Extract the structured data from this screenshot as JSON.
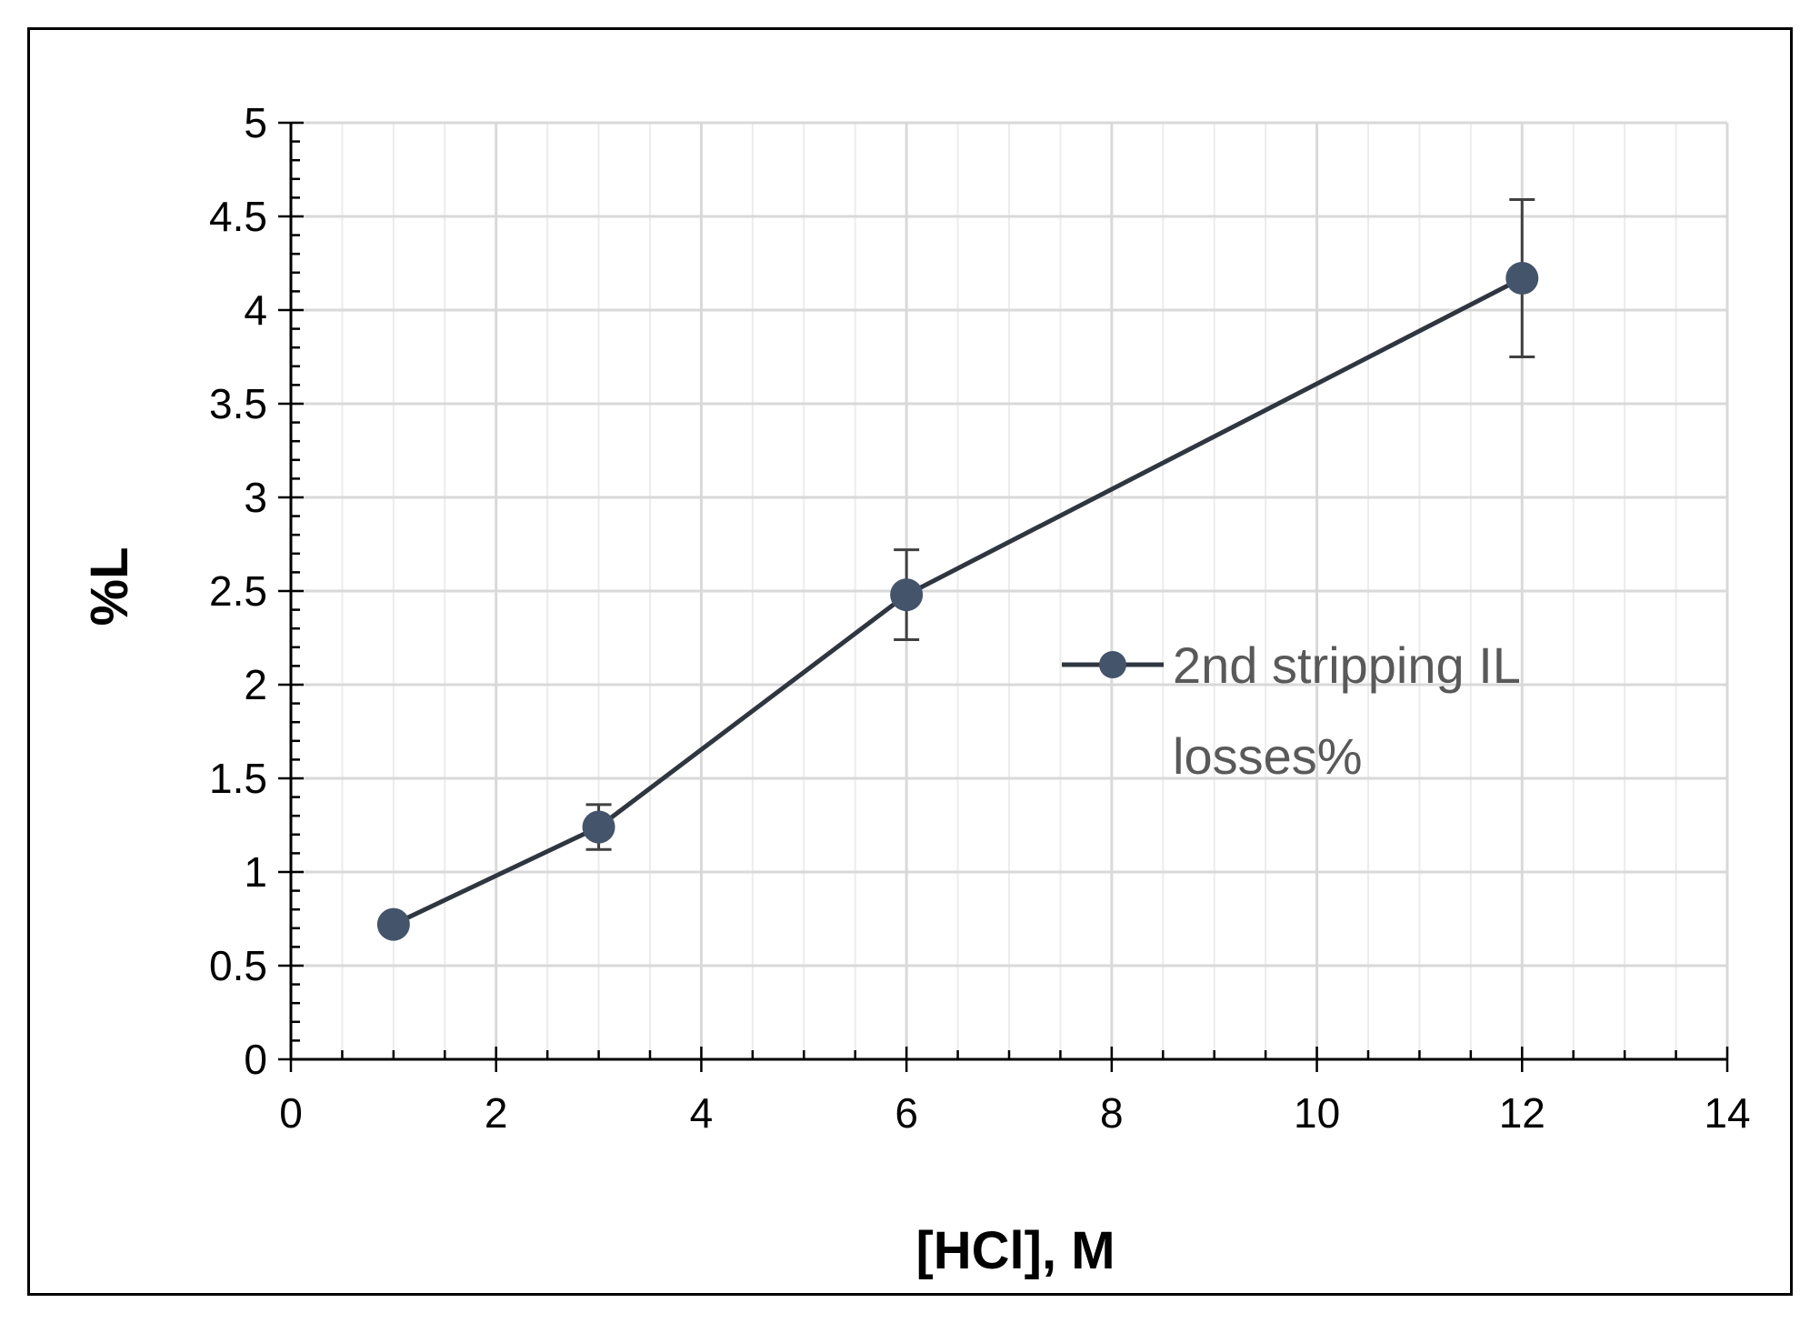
{
  "chart_data": {
    "type": "line",
    "title": "",
    "xlabel": "[HCl], M",
    "ylabel": "%L",
    "xlim": [
      0,
      14
    ],
    "ylim": [
      0,
      5
    ],
    "x_ticks": [
      "0",
      "2",
      "4",
      "6",
      "8",
      "10",
      "12",
      "14"
    ],
    "y_ticks": [
      "0",
      "0.5",
      "1",
      "1.5",
      "2",
      "2.5",
      "3",
      "3.5",
      "4",
      "4.5",
      "5"
    ],
    "grid": true,
    "legend_position": "center-right",
    "series": [
      {
        "name": "2nd stripping IL losses%",
        "color": "#2f3640",
        "x": [
          1,
          3,
          6,
          12
        ],
        "y": [
          0.72,
          1.24,
          2.48,
          4.17
        ],
        "error": [
          0.0,
          0.12,
          0.24,
          0.42
        ]
      }
    ]
  },
  "colors": {
    "grid_major": "#d9d9d9",
    "grid_minor": "#ececec",
    "axis": "#000000",
    "series": "#3b4252",
    "marker": "#44546a",
    "legend_text": "#595959"
  },
  "legend": {
    "line1": "2nd stripping IL",
    "line2": "losses%"
  }
}
